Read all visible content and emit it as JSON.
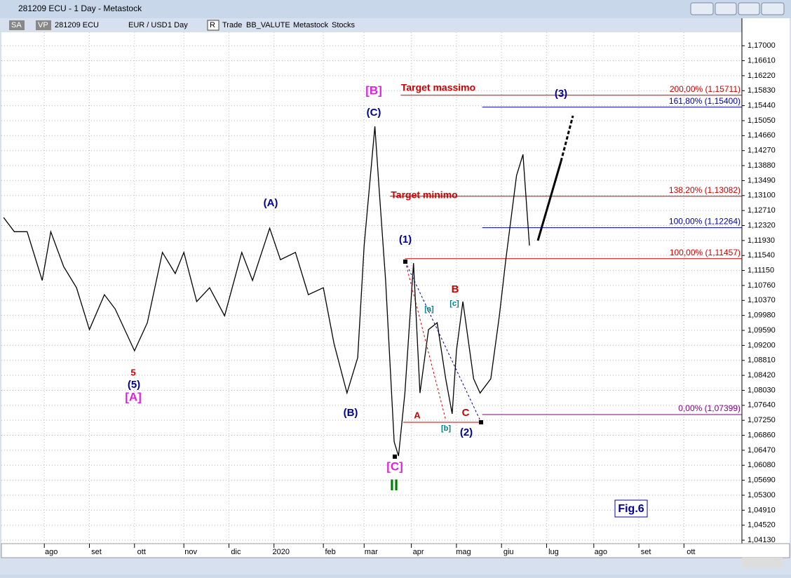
{
  "window": {
    "title": "281209 ECU - 1 Day - Metastock"
  },
  "toolbar": {
    "items": [
      "SA",
      "VP",
      "281209 ECU",
      "EUR / USD",
      "1 Day",
      "R",
      "Trade",
      "BB_VALUTE",
      "Metastock",
      "Stocks"
    ]
  },
  "chart": {
    "type": "line",
    "xlim": [
      0,
      345
    ],
    "ylim": [
      1.0404,
      1.1735
    ],
    "yticks": [
      {
        "value": 1.17,
        "label": "1,17000"
      },
      {
        "value": 1.1661,
        "label": "1,16610"
      },
      {
        "value": 1.1622,
        "label": "1,16220"
      },
      {
        "value": 1.1583,
        "label": "1,15830"
      },
      {
        "value": 1.1544,
        "label": "1,15440"
      },
      {
        "value": 1.1505,
        "label": "1,15050"
      },
      {
        "value": 1.1466,
        "label": "1,14660"
      },
      {
        "value": 1.1427,
        "label": "1,14270"
      },
      {
        "value": 1.1388,
        "label": "1,13880"
      },
      {
        "value": 1.1349,
        "label": "1,13490"
      },
      {
        "value": 1.131,
        "label": "1,13100"
      },
      {
        "value": 1.1271,
        "label": "1,12710"
      },
      {
        "value": 1.1232,
        "label": "1,12320"
      },
      {
        "value": 1.1193,
        "label": "1,11930"
      },
      {
        "value": 1.1154,
        "label": "1,11540"
      },
      {
        "value": 1.1115,
        "label": "1,11150"
      },
      {
        "value": 1.1076,
        "label": "1,10760"
      },
      {
        "value": 1.1037,
        "label": "1,10370"
      },
      {
        "value": 1.0998,
        "label": "1,09980"
      },
      {
        "value": 1.0959,
        "label": "1,09590"
      },
      {
        "value": 1.092,
        "label": "1,09200"
      },
      {
        "value": 1.0881,
        "label": "1,08810"
      },
      {
        "value": 1.0842,
        "label": "1,08420"
      },
      {
        "value": 1.0803,
        "label": "1,08030"
      },
      {
        "value": 1.0764,
        "label": "1,07640"
      },
      {
        "value": 1.0725,
        "label": "1,07250"
      },
      {
        "value": 1.0686,
        "label": "1,06860"
      },
      {
        "value": 1.0647,
        "label": "1,06470"
      },
      {
        "value": 1.0608,
        "label": "1,06080"
      },
      {
        "value": 1.0569,
        "label": "1,05690"
      },
      {
        "value": 1.053,
        "label": "1,05300"
      },
      {
        "value": 1.0491,
        "label": "1,04910"
      },
      {
        "value": 1.0452,
        "label": "1,04520"
      },
      {
        "value": 1.0413,
        "label": "1,04130"
      }
    ],
    "xticks": [
      {
        "value": 20,
        "label": "ago"
      },
      {
        "value": 41,
        "label": "set"
      },
      {
        "value": 62,
        "label": "ott"
      },
      {
        "value": 85,
        "label": "nov"
      },
      {
        "value": 106,
        "label": "dic"
      },
      {
        "value": 127,
        "label": "2020"
      },
      {
        "value": 150,
        "label": "feb"
      },
      {
        "value": 169,
        "label": "mar"
      },
      {
        "value": 191,
        "label": "apr"
      },
      {
        "value": 212,
        "label": "mag"
      },
      {
        "value": 233,
        "label": "giu"
      },
      {
        "value": 254,
        "label": "lug"
      },
      {
        "value": 276,
        "label": "ago"
      },
      {
        "value": 297,
        "label": "set"
      },
      {
        "value": 318,
        "label": "ott"
      }
    ],
    "price": {
      "color": "#000000",
      "x": [
        1,
        6,
        12,
        19,
        23,
        29,
        35,
        41,
        48,
        53,
        62,
        68,
        75,
        81,
        85,
        91,
        97,
        104,
        112,
        117,
        125,
        130,
        137,
        143,
        150,
        155,
        161,
        166,
        169,
        174,
        176,
        179,
        183,
        185,
        188,
        192,
        195,
        199,
        203,
        207,
        210,
        212,
        215,
        220,
        223,
        228,
        232,
        235,
        240,
        243,
        246
      ],
      "values": [
        1.1253,
        1.1216,
        1.1216,
        1.1089,
        1.1216,
        1.1125,
        1.107,
        1.0961,
        1.1052,
        1.1015,
        1.0906,
        1.0979,
        1.1162,
        1.1107,
        1.1162,
        1.1034,
        1.107,
        1.0997,
        1.1162,
        1.1089,
        1.1225,
        1.1143,
        1.1162,
        1.1052,
        1.107,
        1.0924,
        1.0796,
        1.0888,
        1.118,
        1.149,
        1.1326,
        1.1089,
        1.0669,
        1.0632,
        1.0796,
        1.1134,
        1.0796,
        1.0961,
        1.0979,
        1.0833,
        1.0742,
        1.0906,
        1.1034,
        1.0833,
        1.0796,
        1.0833,
        1.0997,
        1.1143,
        1.1362,
        1.1417,
        1.118
      ]
    },
    "levels": [
      {
        "value": 1.15711,
        "label": "200,00% (1,15711)",
        "color": "#cc0000",
        "from": 186
      },
      {
        "value": 1.154,
        "label": "161,80% (1,15400)",
        "color": "#000099",
        "from": 224
      },
      {
        "value": 1.13082,
        "label": "138,20% (1,13082)",
        "color": "#cc0000",
        "from": 181
      },
      {
        "value": 1.12264,
        "label": "100,00% (1,12264)",
        "color": "#000099",
        "from": 224
      },
      {
        "value": 1.11457,
        "label": "100,00% (1,11457)",
        "color": "#cc0000",
        "from": 188
      },
      {
        "value": 1.07399,
        "label": "0,00% (1,07399)",
        "color": "#800080",
        "from": 224
      }
    ],
    "annotations": [
      "[B]",
      "(C)",
      "Target massimo",
      "(3)",
      "Target minimo",
      "(A)",
      "(1)",
      "B",
      "[c]",
      "[a]",
      "5",
      "(5)",
      "[A]",
      "(B)",
      "A",
      "C",
      "[b]",
      "(2)",
      "[C]",
      "II",
      "Fig.6"
    ]
  }
}
